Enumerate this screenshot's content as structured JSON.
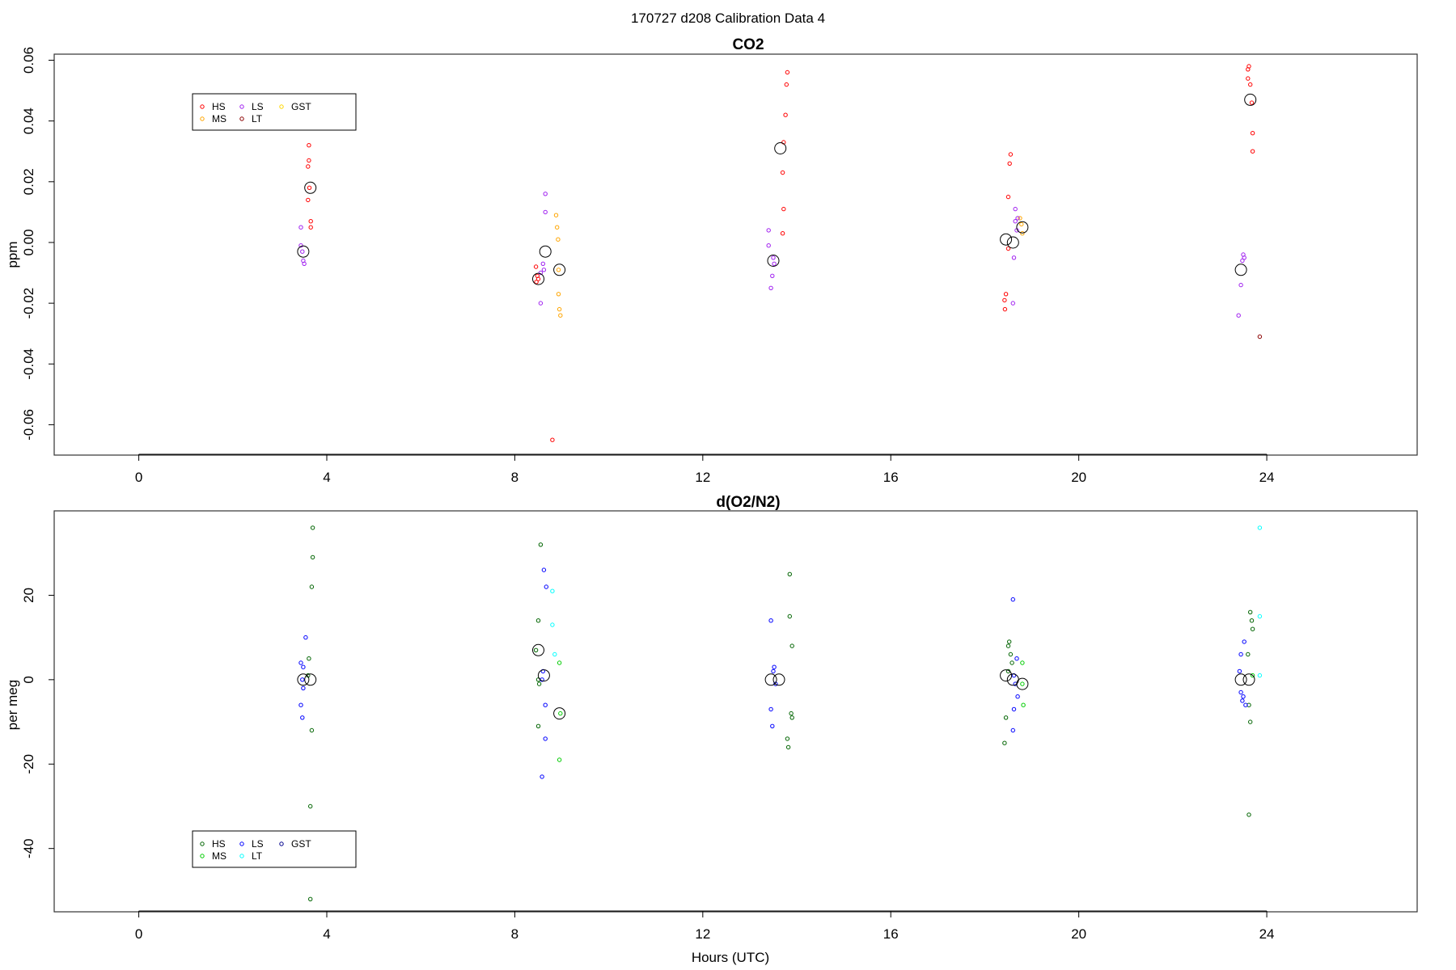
{
  "figure_title": "170727   d208   Calibration Data 4",
  "x_axis_label": "Hours (UTC)",
  "chart_data": [
    {
      "type": "scatter",
      "title": "CO2",
      "xlabel": "",
      "ylabel": "ppm",
      "xlim": [
        -1.8,
        27.2
      ],
      "ylim": [
        -0.07,
        0.062
      ],
      "xticks": [
        0,
        4,
        8,
        12,
        16,
        20,
        24
      ],
      "yticks": [
        -0.06,
        -0.04,
        -0.02,
        0.0,
        0.02,
        0.04,
        0.06
      ],
      "ytick_labels": [
        "-0.06",
        "-0.04",
        "-0.02",
        "0.00",
        "0.02",
        "0.04",
        "0.06"
      ],
      "legend": {
        "position": "top-left",
        "items": [
          {
            "label": "HS",
            "color": "#ff0000"
          },
          {
            "label": "MS",
            "color": "#ffa500"
          },
          {
            "label": "LS",
            "color": "#a020f0"
          },
          {
            "label": "LT",
            "color": "#8b0000"
          },
          {
            "label": "GST",
            "color": "#ffd700"
          }
        ]
      },
      "series": [
        {
          "name": "HS",
          "color": "#ff0000",
          "points": [
            [
              3.62,
              0.032
            ],
            [
              3.62,
              0.027
            ],
            [
              3.6,
              0.025
            ],
            [
              3.63,
              0.018
            ],
            [
              3.6,
              0.014
            ],
            [
              3.66,
              0.007
            ],
            [
              3.66,
              0.005
            ],
            [
              8.45,
              -0.008
            ],
            [
              8.48,
              -0.011
            ],
            [
              8.46,
              -0.013
            ],
            [
              8.5,
              -0.012
            ],
            [
              8.8,
              -0.065
            ],
            [
              13.8,
              0.056
            ],
            [
              13.78,
              0.052
            ],
            [
              13.76,
              0.042
            ],
            [
              13.72,
              0.033
            ],
            [
              13.7,
              0.023
            ],
            [
              13.72,
              0.011
            ],
            [
              13.7,
              0.003
            ],
            [
              18.55,
              0.029
            ],
            [
              18.53,
              0.026
            ],
            [
              18.5,
              0.015
            ],
            [
              18.5,
              -0.002
            ],
            [
              18.45,
              -0.017
            ],
            [
              18.42,
              -0.019
            ],
            [
              18.43,
              -0.022
            ],
            [
              23.6,
              0.057
            ],
            [
              23.62,
              0.058
            ],
            [
              23.6,
              0.054
            ],
            [
              23.65,
              0.052
            ],
            [
              23.68,
              0.046
            ],
            [
              23.7,
              0.036
            ],
            [
              23.7,
              0.03
            ]
          ]
        },
        {
          "name": "MS",
          "color": "#ffa500",
          "points": [
            [
              8.88,
              0.009
            ],
            [
              8.9,
              0.005
            ],
            [
              8.92,
              0.001
            ],
            [
              8.93,
              -0.009
            ],
            [
              8.93,
              -0.017
            ],
            [
              8.95,
              -0.022
            ],
            [
              8.97,
              -0.024
            ],
            [
              18.75,
              0.008
            ],
            [
              18.78,
              0.006
            ],
            [
              18.8,
              0.003
            ]
          ]
        },
        {
          "name": "LS",
          "color": "#a020f0",
          "points": [
            [
              3.45,
              0.005
            ],
            [
              3.45,
              -0.001
            ],
            [
              3.48,
              -0.003
            ],
            [
              3.5,
              -0.006
            ],
            [
              3.52,
              -0.007
            ],
            [
              8.65,
              0.016
            ],
            [
              8.65,
              0.01
            ],
            [
              8.6,
              -0.007
            ],
            [
              8.62,
              -0.009
            ],
            [
              8.55,
              -0.01
            ],
            [
              8.55,
              -0.02
            ],
            [
              13.4,
              0.004
            ],
            [
              13.4,
              -0.001
            ],
            [
              13.5,
              -0.005
            ],
            [
              13.52,
              -0.007
            ],
            [
              13.48,
              -0.011
            ],
            [
              13.45,
              -0.015
            ],
            [
              18.65,
              0.011
            ],
            [
              18.7,
              0.008
            ],
            [
              18.65,
              0.007
            ],
            [
              18.68,
              0.004
            ],
            [
              18.62,
              -0.005
            ],
            [
              18.6,
              -0.02
            ],
            [
              23.5,
              -0.004
            ],
            [
              23.52,
              -0.005
            ],
            [
              23.48,
              -0.006
            ],
            [
              23.45,
              -0.014
            ],
            [
              23.4,
              -0.024
            ]
          ]
        },
        {
          "name": "LT",
          "color": "#8b0000",
          "points": [
            [
              23.85,
              -0.031
            ]
          ]
        },
        {
          "name": "GST",
          "color": "#ffd700",
          "points": []
        },
        {
          "name": "",
          "color": "#000000",
          "marker": "circle-large",
          "points": [
            [
              3.5,
              -0.003
            ],
            [
              3.65,
              0.018
            ],
            [
              8.5,
              -0.012
            ],
            [
              8.65,
              -0.003
            ],
            [
              8.95,
              -0.009
            ],
            [
              13.5,
              -0.006
            ],
            [
              13.65,
              0.031
            ],
            [
              18.45,
              0.001
            ],
            [
              18.6,
              0.0
            ],
            [
              18.8,
              0.005
            ],
            [
              23.45,
              -0.009
            ],
            [
              23.65,
              0.047
            ]
          ]
        }
      ]
    },
    {
      "type": "scatter",
      "title": "d(O2/N2)",
      "xlabel": "Hours (UTC)",
      "ylabel": "per meg",
      "xlim": [
        -1.8,
        27.2
      ],
      "ylim": [
        -55,
        40
      ],
      "xticks": [
        0,
        4,
        8,
        12,
        16,
        20,
        24
      ],
      "yticks": [
        -40,
        -20,
        0,
        20
      ],
      "ytick_labels": [
        "-40",
        "-20",
        "0",
        "20"
      ],
      "legend": {
        "position": "bottom-left",
        "items": [
          {
            "label": "HS",
            "color": "#006400"
          },
          {
            "label": "MS",
            "color": "#00cc00"
          },
          {
            "label": "LS",
            "color": "#0000ff"
          },
          {
            "label": "LT",
            "color": "#00ffff"
          },
          {
            "label": "GST",
            "color": "#00008b"
          }
        ]
      },
      "series": [
        {
          "name": "HS",
          "color": "#006400",
          "points": [
            [
              3.7,
              36
            ],
            [
              3.7,
              29
            ],
            [
              3.68,
              22
            ],
            [
              3.62,
              5
            ],
            [
              3.6,
              1
            ],
            [
              3.68,
              -12
            ],
            [
              3.65,
              -30
            ],
            [
              3.65,
              -52
            ],
            [
              8.55,
              32
            ],
            [
              8.5,
              14
            ],
            [
              8.45,
              7
            ],
            [
              8.5,
              0
            ],
            [
              8.52,
              -1
            ],
            [
              8.5,
              -11
            ],
            [
              13.85,
              25
            ],
            [
              13.85,
              15
            ],
            [
              13.9,
              8
            ],
            [
              13.88,
              -8
            ],
            [
              13.9,
              -9
            ],
            [
              13.8,
              -14
            ],
            [
              13.82,
              -16
            ],
            [
              18.5,
              8
            ],
            [
              18.52,
              9
            ],
            [
              18.55,
              6
            ],
            [
              18.58,
              4
            ],
            [
              18.5,
              2
            ],
            [
              18.45,
              -9
            ],
            [
              18.42,
              -15
            ],
            [
              23.65,
              16
            ],
            [
              23.68,
              14
            ],
            [
              23.7,
              12
            ],
            [
              23.6,
              6
            ],
            [
              23.62,
              -6
            ],
            [
              23.65,
              -10
            ],
            [
              23.62,
              -32
            ]
          ]
        },
        {
          "name": "MS",
          "color": "#00cc00",
          "points": [
            [
              8.95,
              4
            ],
            [
              8.97,
              -8
            ],
            [
              8.95,
              -19
            ],
            [
              18.8,
              4
            ],
            [
              18.8,
              -1
            ],
            [
              18.82,
              -6
            ],
            [
              23.7,
              1
            ]
          ]
        },
        {
          "name": "LS",
          "color": "#0000ff",
          "points": [
            [
              3.55,
              10
            ],
            [
              3.45,
              4
            ],
            [
              3.5,
              3
            ],
            [
              3.48,
              0
            ],
            [
              3.5,
              -2
            ],
            [
              3.45,
              -6
            ],
            [
              3.48,
              -9
            ],
            [
              8.62,
              26
            ],
            [
              8.67,
              22
            ],
            [
              8.6,
              2
            ],
            [
              8.58,
              0
            ],
            [
              8.65,
              -6
            ],
            [
              8.65,
              -14
            ],
            [
              8.58,
              -23
            ],
            [
              13.45,
              14
            ],
            [
              13.52,
              3
            ],
            [
              13.5,
              2
            ],
            [
              13.55,
              -1
            ],
            [
              13.45,
              -7
            ],
            [
              13.48,
              -11
            ],
            [
              18.6,
              19
            ],
            [
              18.68,
              5
            ],
            [
              18.62,
              1
            ],
            [
              18.65,
              -1
            ],
            [
              18.7,
              -4
            ],
            [
              18.62,
              -7
            ],
            [
              18.6,
              -12
            ],
            [
              23.52,
              9
            ],
            [
              23.45,
              6
            ],
            [
              23.42,
              2
            ],
            [
              23.45,
              -3
            ],
            [
              23.5,
              -4
            ],
            [
              23.48,
              -5
            ],
            [
              23.55,
              -6
            ]
          ]
        },
        {
          "name": "LT",
          "color": "#00ffff",
          "points": [
            [
              8.8,
              21
            ],
            [
              8.8,
              13
            ],
            [
              8.85,
              6
            ],
            [
              23.85,
              36
            ],
            [
              23.85,
              15
            ],
            [
              23.85,
              1
            ]
          ]
        },
        {
          "name": "GST",
          "color": "#00008b",
          "points": []
        },
        {
          "name": "",
          "color": "#000000",
          "marker": "circle-large",
          "points": [
            [
              3.5,
              0
            ],
            [
              3.65,
              0
            ],
            [
              8.5,
              7
            ],
            [
              8.62,
              1
            ],
            [
              8.95,
              -8
            ],
            [
              13.45,
              0
            ],
            [
              13.62,
              0
            ],
            [
              18.45,
              1
            ],
            [
              18.6,
              0
            ],
            [
              18.8,
              -1
            ],
            [
              23.45,
              0
            ],
            [
              23.62,
              0
            ]
          ]
        }
      ]
    }
  ]
}
